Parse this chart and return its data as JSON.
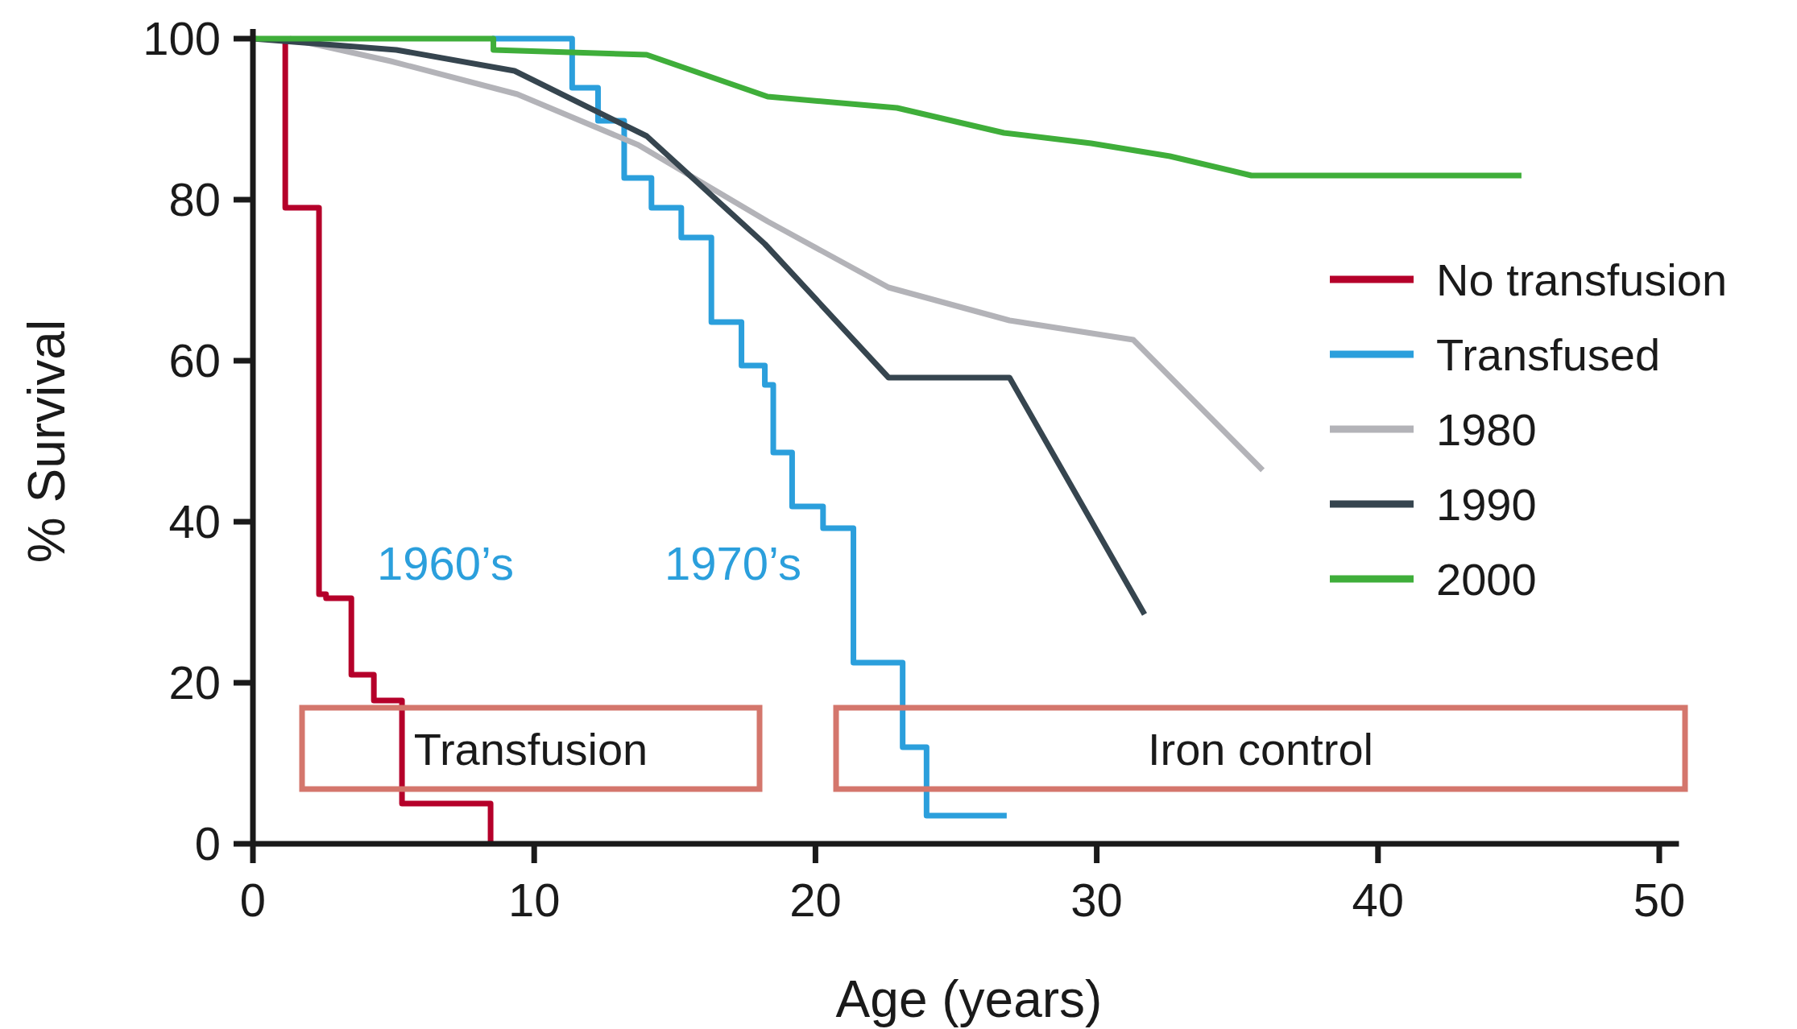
{
  "chart_data": {
    "type": "line",
    "xlabel": "Age (years)",
    "ylabel": "% Survival",
    "xlim": [
      0,
      50.7
    ],
    "ylim": [
      0,
      100
    ],
    "xticks": [
      0,
      10,
      20,
      30,
      40,
      50
    ],
    "yticks": [
      0,
      20,
      40,
      60,
      80,
      100
    ],
    "legend": "right",
    "grid": false,
    "series": [
      {
        "name": "No transfusion",
        "type": "step",
        "color": "#b5002a",
        "x": [
          1.15,
          1.15,
          2.35,
          2.6,
          3.5,
          4.3,
          5.3,
          8.45
        ],
        "values": [
          100,
          79,
          31,
          30.5,
          21,
          17.8,
          5,
          0
        ]
      },
      {
        "name": "Transfused",
        "type": "step",
        "color": "#2b9fdc",
        "x": [
          8.5,
          11.35,
          12.27,
          13.2,
          14.17,
          15.23,
          16.3,
          17.37,
          18.2,
          18.5,
          19.17,
          20.27,
          21.35,
          23.1,
          23.95,
          26.8
        ],
        "values": [
          100,
          93.9,
          89.8,
          82.7,
          79,
          75.3,
          64.8,
          59.4,
          57,
          48.6,
          41.9,
          39.2,
          22.5,
          12,
          3.5,
          3.5
        ]
      },
      {
        "name": "1980",
        "color": "#b3b3b8",
        "x": [
          1.3,
          4.9,
          9.4,
          13.7,
          18.3,
          22.6,
          26.9,
          31.3,
          35.9
        ],
        "values": [
          100,
          97.2,
          93.1,
          86.8,
          77.3,
          69.1,
          65,
          62.6,
          46.4
        ]
      },
      {
        "name": "1990",
        "color": "#36454f",
        "x": [
          0,
          5.1,
          9.3,
          14,
          18.2,
          22.6,
          26.9,
          31.7
        ],
        "values": [
          100,
          98.6,
          96,
          87.9,
          74.5,
          57.9,
          57.9,
          28.5
        ]
      },
      {
        "name": "2000",
        "color": "#3fae3a",
        "x": [
          0,
          8.55,
          8.55,
          14,
          18.3,
          22.9,
          26.7,
          29.8,
          32.6,
          35.5,
          45.1
        ],
        "values": [
          100,
          100,
          98.6,
          98,
          92.8,
          91.4,
          88.3,
          87,
          85.4,
          83,
          83
        ]
      }
    ],
    "annotations": [
      "1960’s",
      "1970’s",
      "Transfusion",
      "Iron control"
    ]
  }
}
